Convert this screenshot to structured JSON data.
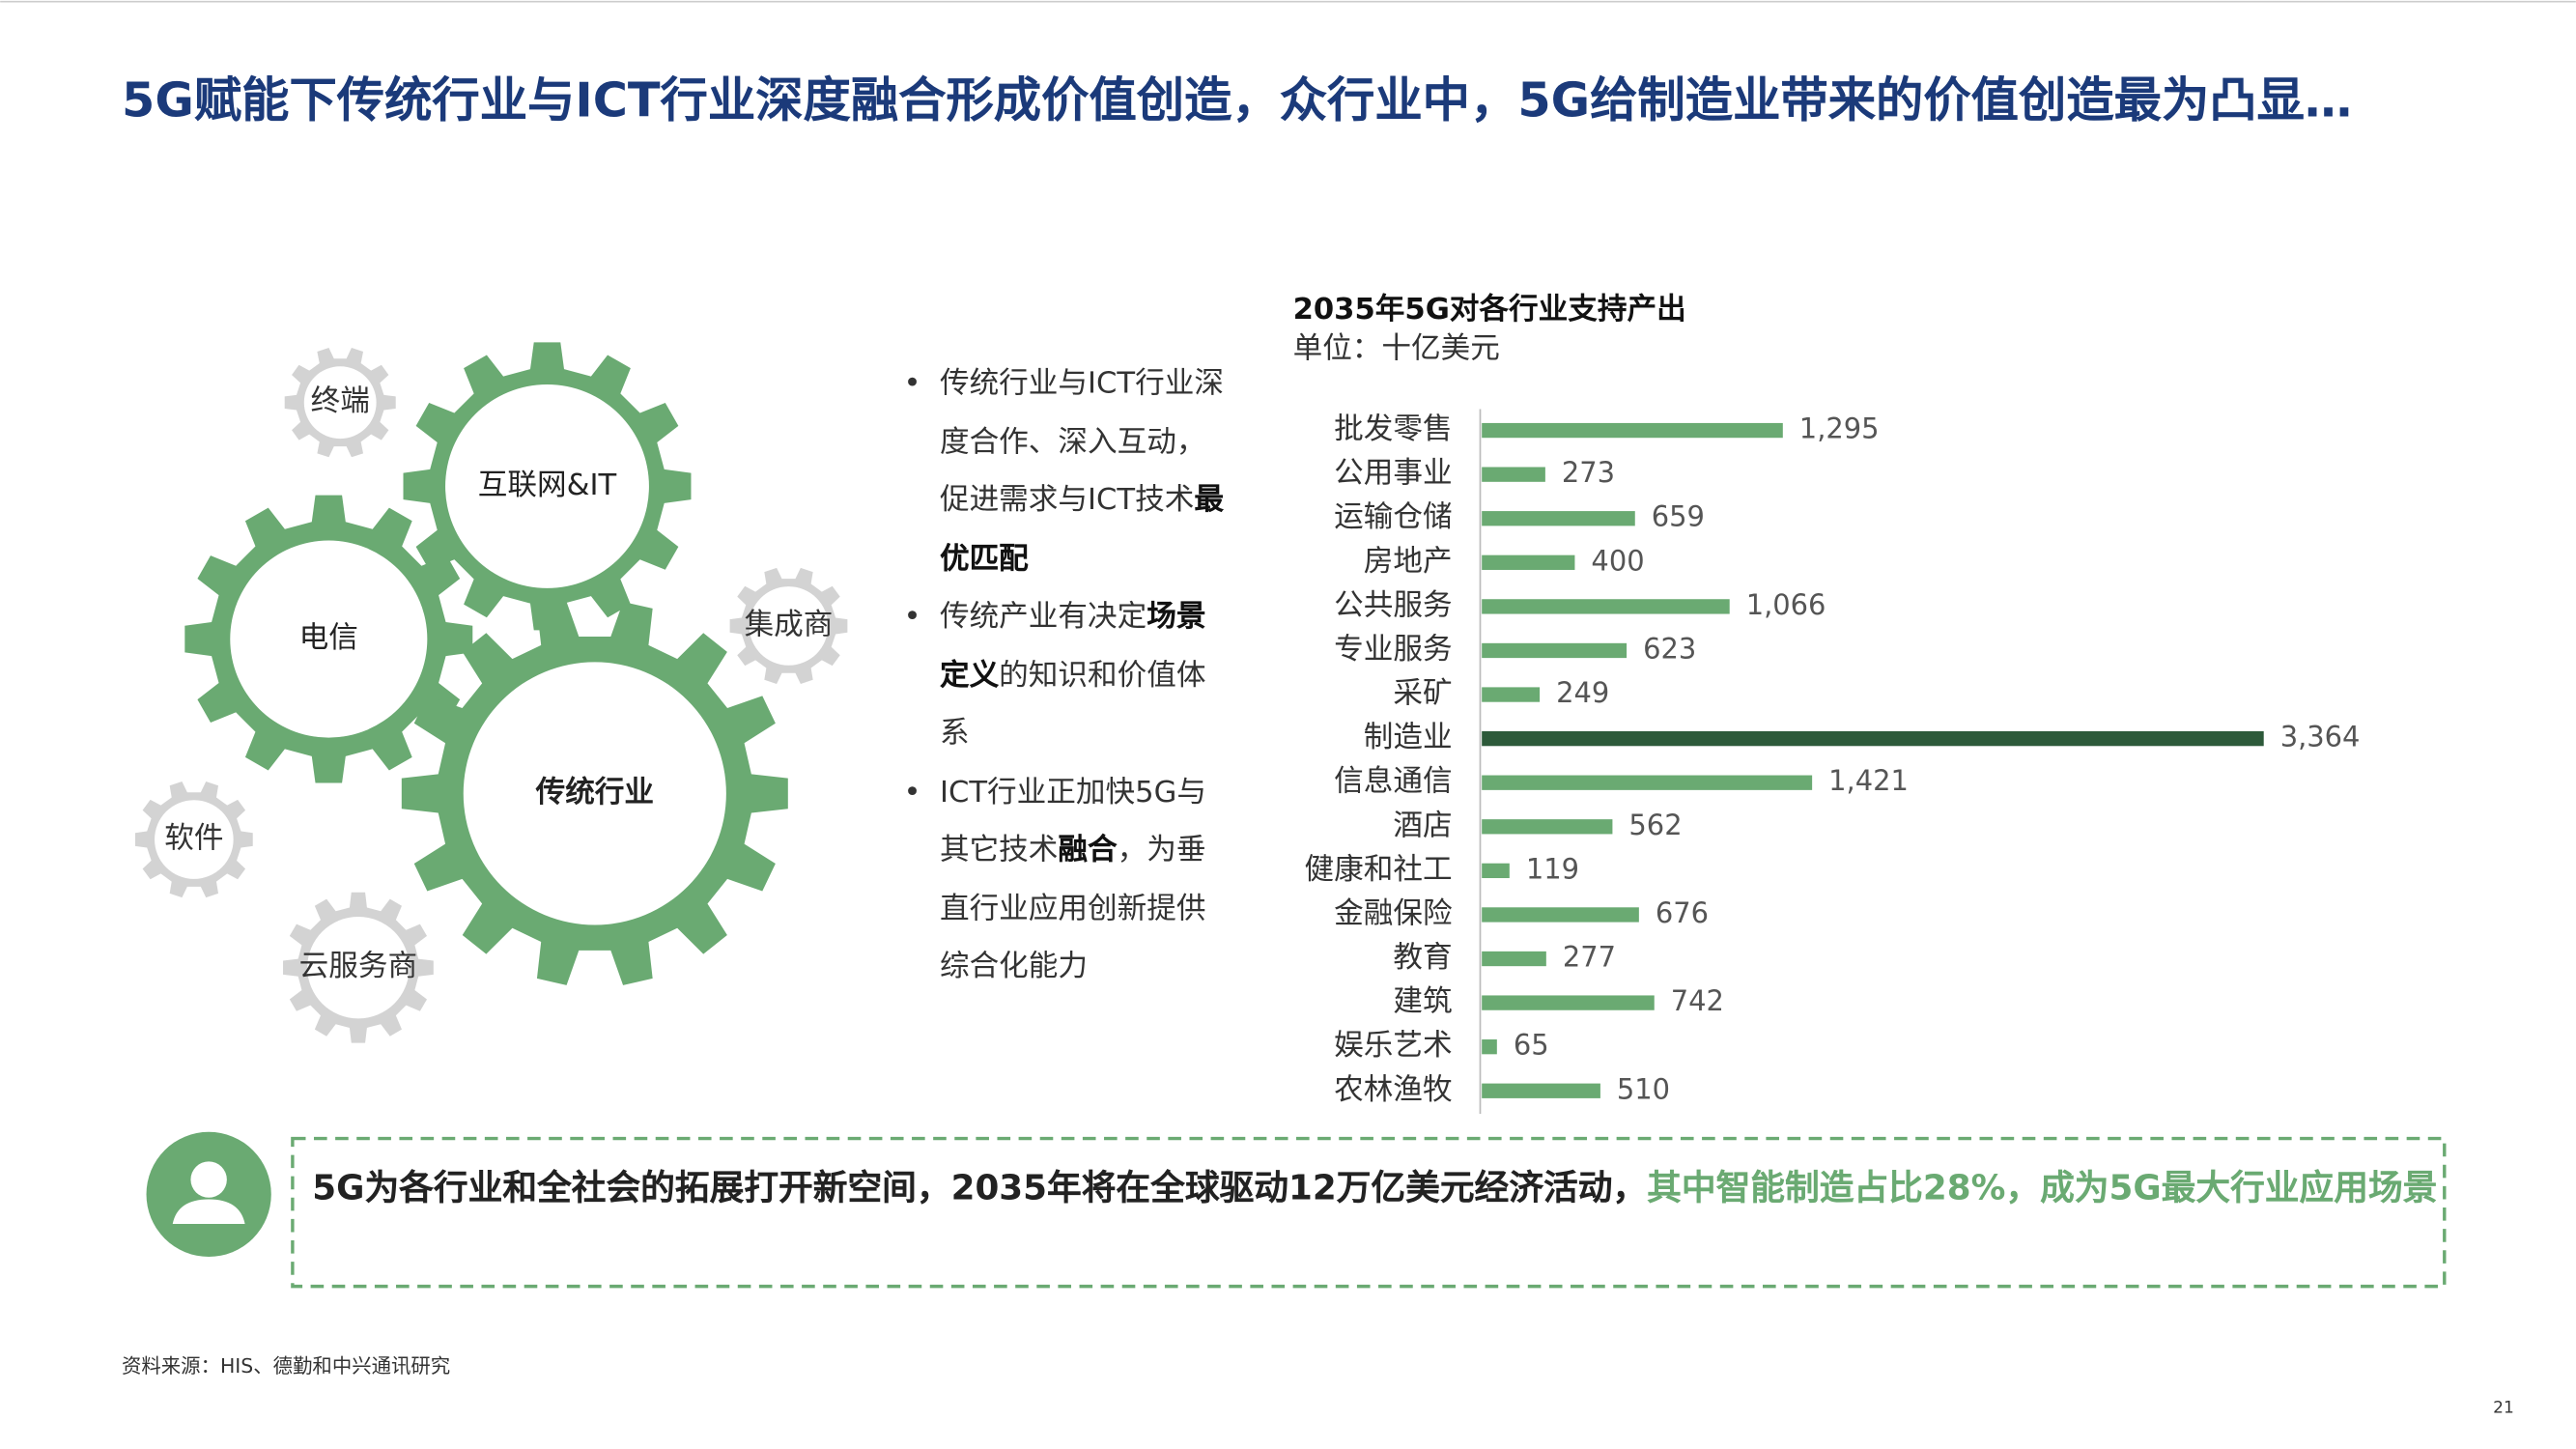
{
  "title": "5G赋能下传统行业与ICT行业深度融合形成价值创造，众行业中，5G给制造业带来的价值创造最为凸显…",
  "gears": {
    "green": [
      "互联网&IT",
      "电信",
      "传统行业"
    ],
    "gray": [
      "终端",
      "集成商",
      "软件",
      "云服务商"
    ]
  },
  "bullets": [
    [
      "传统行业与ICT行业深度合作、深入互动，促进需求与ICT技术",
      "最优匹配"
    ],
    [
      "传统产业有决定",
      "场景定义",
      "的知识和价值体系"
    ],
    [
      "ICT行业正加快5G与其它技术",
      "融合",
      "，为垂直行业应用创新提供综合化能力"
    ]
  ],
  "callout": [
    "5G为各行业和全社会的拓展打开新空间，2035年将在全球驱动12万亿美元经济活动，",
    "其中智能制造占比28%，成为5G最大行业应用场景"
  ],
  "source": "资料来源：HIS、德勤和中兴通讯研究",
  "page_number": "21",
  "chart_data": {
    "type": "bar",
    "orientation": "horizontal",
    "title": "2035年5G对各行业支持产出",
    "subtitle": "单位：十亿美元",
    "categories": [
      "批发零售",
      "公用事业",
      "运输仓储",
      "房地产",
      "公共服务",
      "专业服务",
      "采矿",
      "制造业",
      "信息通信",
      "酒店",
      "健康和社工",
      "金融保险",
      "教育",
      "建筑",
      "娱乐艺术",
      "农林渔牧"
    ],
    "values": [
      1295,
      273,
      659,
      400,
      1066,
      623,
      249,
      3364,
      1421,
      562,
      119,
      676,
      277,
      742,
      65,
      510
    ],
    "value_labels": [
      "1,295",
      "273",
      "659",
      "400",
      "1,066",
      "623",
      "249",
      "3,364",
      "1,421",
      "562",
      "119",
      "676",
      "277",
      "742",
      "65",
      "510"
    ],
    "colors": [
      "#6aaa72",
      "#6aaa72",
      "#6aaa72",
      "#6aaa72",
      "#6aaa72",
      "#6aaa72",
      "#6aaa72",
      "#2d5a3a",
      "#6aaa72",
      "#6aaa72",
      "#6aaa72",
      "#6aaa72",
      "#6aaa72",
      "#6aaa72",
      "#6aaa72",
      "#6aaa72"
    ]
  }
}
